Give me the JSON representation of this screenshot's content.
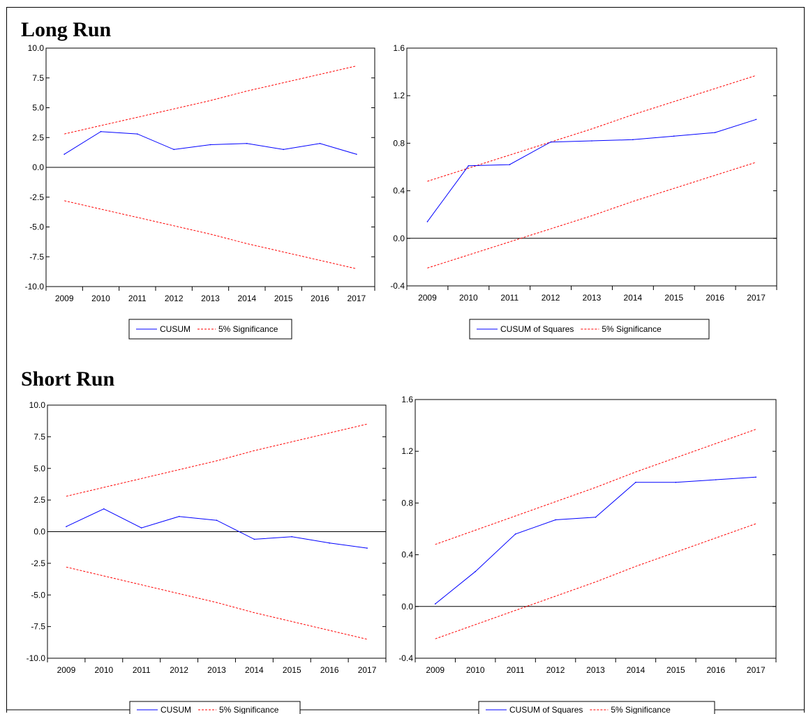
{
  "sections": {
    "long_run": "Long Run",
    "short_run": "Short Run"
  },
  "colors": {
    "series": "#0000ff",
    "bounds": "#ff0000",
    "axis": "#000000"
  },
  "chart_data": [
    {
      "id": "long-cusum",
      "section": "Long Run",
      "type": "line",
      "x": [
        2009,
        2010,
        2011,
        2012,
        2013,
        2014,
        2015,
        2016,
        2017
      ],
      "ylim": [
        -10.0,
        10.0
      ],
      "yticks": [
        "10.0",
        "7.5",
        "5.0",
        "2.5",
        "0.0",
        "-2.5",
        "-5.0",
        "-7.5",
        "-10.0"
      ],
      "ytick_values": [
        10,
        7.5,
        5,
        2.5,
        0,
        -2.5,
        -5,
        -7.5,
        -10
      ],
      "series": [
        {
          "name": "CUSUM",
          "values": [
            1.1,
            3.0,
            2.8,
            1.5,
            1.9,
            2.0,
            1.5,
            2.0,
            1.1
          ]
        },
        {
          "name": "5% Significance",
          "upper": [
            2.8,
            3.5,
            4.2,
            4.9,
            5.6,
            6.4,
            7.1,
            7.8,
            8.5
          ],
          "lower": [
            -2.8,
            -3.5,
            -4.2,
            -4.9,
            -5.6,
            -6.4,
            -7.1,
            -7.8,
            -8.5
          ]
        }
      ],
      "zero_line": true,
      "legend": [
        "CUSUM",
        "5% Significance"
      ],
      "legend_position": "bottom"
    },
    {
      "id": "long-cusumsq",
      "section": "Long Run",
      "type": "line",
      "x": [
        2009,
        2010,
        2011,
        2012,
        2013,
        2014,
        2015,
        2016,
        2017
      ],
      "ylim": [
        -0.4,
        1.6
      ],
      "yticks": [
        "1.6",
        "1.2",
        "0.8",
        "0.4",
        "0.0",
        "-0.4"
      ],
      "ytick_values": [
        1.6,
        1.2,
        0.8,
        0.4,
        0.0,
        -0.4
      ],
      "series": [
        {
          "name": "CUSUM of Squares",
          "values": [
            0.14,
            0.61,
            0.62,
            0.81,
            0.82,
            0.83,
            0.86,
            0.89,
            1.0
          ]
        },
        {
          "name": "5% Significance",
          "upper": [
            0.48,
            0.59,
            0.7,
            0.81,
            0.92,
            1.04,
            1.15,
            1.26,
            1.37
          ],
          "lower": [
            -0.25,
            -0.14,
            -0.03,
            0.08,
            0.19,
            0.31,
            0.42,
            0.53,
            0.64
          ]
        }
      ],
      "zero_line": true,
      "legend": [
        "CUSUM of Squares",
        "5% Significance"
      ],
      "legend_position": "bottom"
    },
    {
      "id": "short-cusum",
      "section": "Short Run",
      "type": "line",
      "x": [
        2009,
        2010,
        2011,
        2012,
        2013,
        2014,
        2015,
        2016,
        2017
      ],
      "ylim": [
        -10.0,
        10.0
      ],
      "yticks": [
        "10.0",
        "7.5",
        "5.0",
        "2.5",
        "0.0",
        "-2.5",
        "-5.0",
        "-7.5",
        "-10.0"
      ],
      "ytick_values": [
        10,
        7.5,
        5,
        2.5,
        0,
        -2.5,
        -5,
        -7.5,
        -10
      ],
      "series": [
        {
          "name": "CUSUM",
          "values": [
            0.4,
            1.8,
            0.3,
            1.2,
            0.9,
            -0.6,
            -0.4,
            -0.9,
            -1.3
          ]
        },
        {
          "name": "5% Significance",
          "upper": [
            2.8,
            3.5,
            4.2,
            4.9,
            5.6,
            6.4,
            7.1,
            7.8,
            8.5
          ],
          "lower": [
            -2.8,
            -3.5,
            -4.2,
            -4.9,
            -5.6,
            -6.4,
            -7.1,
            -7.8,
            -8.5
          ]
        }
      ],
      "zero_line": true,
      "legend": [
        "CUSUM",
        "5% Significance"
      ],
      "legend_position": "bottom"
    },
    {
      "id": "short-cusumsq",
      "section": "Short Run",
      "type": "line",
      "x": [
        2009,
        2010,
        2011,
        2012,
        2013,
        2014,
        2015,
        2016,
        2017
      ],
      "ylim": [
        -0.4,
        1.6
      ],
      "yticks": [
        "1.6",
        "1.2",
        "0.8",
        "0.4",
        "0.0",
        "-0.4"
      ],
      "ytick_values": [
        1.6,
        1.2,
        0.8,
        0.4,
        0.0,
        -0.4
      ],
      "series": [
        {
          "name": "CUSUM of Squares",
          "values": [
            0.02,
            0.27,
            0.56,
            0.67,
            0.69,
            0.96,
            0.96,
            0.98,
            1.0
          ]
        },
        {
          "name": "5% Significance",
          "upper": [
            0.48,
            0.59,
            0.7,
            0.81,
            0.92,
            1.04,
            1.15,
            1.26,
            1.37
          ],
          "lower": [
            -0.25,
            -0.14,
            -0.03,
            0.08,
            0.19,
            0.31,
            0.42,
            0.53,
            0.64
          ]
        }
      ],
      "zero_line": true,
      "legend": [
        "CUSUM of Squares",
        "5% Significance"
      ],
      "legend_position": "bottom"
    }
  ]
}
